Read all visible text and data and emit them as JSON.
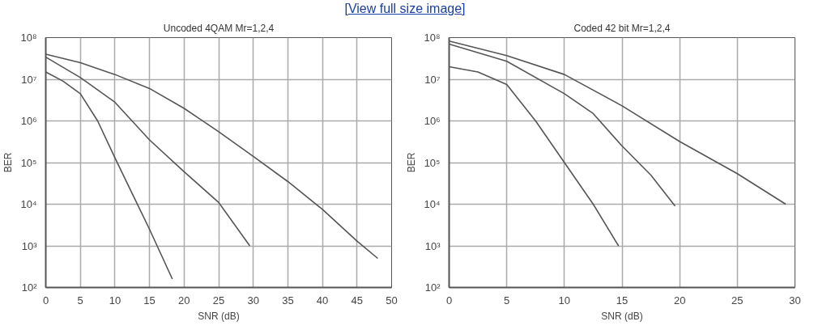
{
  "chart_data": [
    {
      "type": "line",
      "title": "Uncoded 4QAM Mr=1,2,4",
      "xlabel": "SNR (dB)",
      "ylabel": "BER",
      "log": "y",
      "grid": true,
      "marker": "none",
      "line_style": "solid",
      "annotations": [
        "[View full size image]"
      ],
      "xlim": [
        0,
        50
      ],
      "xticks": [
        0,
        5,
        10,
        15,
        20,
        25,
        30,
        35,
        40,
        45,
        50
      ],
      "ylim": [
        100,
        100000000
      ],
      "yticks": [
        {
          "value": 100,
          "label": "10²"
        },
        {
          "value": 1000,
          "label": "10³"
        },
        {
          "value": 10000,
          "label": "10⁴"
        },
        {
          "value": 100000,
          "label": "10⁵"
        },
        {
          "value": 1000000,
          "label": "10⁶"
        },
        {
          "value": 10000000,
          "label": "10⁷"
        },
        {
          "value": 100000000,
          "label": "10⁸"
        }
      ],
      "series": [
        {
          "color": "#555555",
          "x": [
            0,
            2.5,
            5,
            7.5,
            10,
            12.5,
            15,
            18.3
          ],
          "values": [
            15000000,
            9000000,
            4500000,
            1000000,
            130000,
            18000,
            2500,
            160
          ]
        },
        {
          "color": "#555555",
          "x": [
            0,
            5,
            10,
            15,
            20,
            25,
            29.5
          ],
          "values": [
            34000000,
            11000000,
            2800000,
            350000,
            60000,
            11000,
            1000
          ]
        },
        {
          "color": "#555555",
          "x": [
            0,
            5,
            10,
            15,
            20,
            25,
            30,
            35,
            40,
            45,
            48
          ],
          "values": [
            40000000,
            25000000,
            13000000,
            6000000,
            2000000,
            550000,
            140000,
            35000,
            7500,
            1300,
            500
          ]
        }
      ]
    },
    {
      "type": "line",
      "title": "Coded 42 bit Mr=1,2,4",
      "xlabel": "SNR (dB)",
      "ylabel": "BER",
      "log": "y",
      "grid": true,
      "marker": "none",
      "line_style": "solid",
      "xlim": [
        0,
        30
      ],
      "xticks": [
        0,
        5,
        10,
        15,
        20,
        25,
        30
      ],
      "ylim": [
        100,
        100000000
      ],
      "yticks": [
        {
          "value": 100,
          "label": "10²"
        },
        {
          "value": 1000,
          "label": "10³"
        },
        {
          "value": 10000,
          "label": "10⁴"
        },
        {
          "value": 100000,
          "label": "10⁵"
        },
        {
          "value": 1000000,
          "label": "10⁶"
        },
        {
          "value": 10000000,
          "label": "10⁷"
        },
        {
          "value": 100000000,
          "label": "10⁸"
        }
      ],
      "series": [
        {
          "color": "#555555",
          "x": [
            0,
            2.5,
            5,
            7.5,
            10,
            12.5,
            14.7
          ],
          "values": [
            20000000,
            15000000,
            7500000,
            1000000,
            100000,
            10000,
            1000
          ]
        },
        {
          "color": "#555555",
          "x": [
            0,
            5,
            10,
            12.5,
            15,
            17.5,
            19.6
          ],
          "values": [
            70000000,
            27000000,
            4500000,
            1500000,
            250000,
            50000,
            9000
          ]
        },
        {
          "color": "#555555",
          "x": [
            0,
            5,
            10,
            15,
            20,
            25,
            29.2
          ],
          "values": [
            83000000,
            37000000,
            13000000,
            2300000,
            320000,
            54000,
            10000
          ]
        }
      ]
    }
  ]
}
